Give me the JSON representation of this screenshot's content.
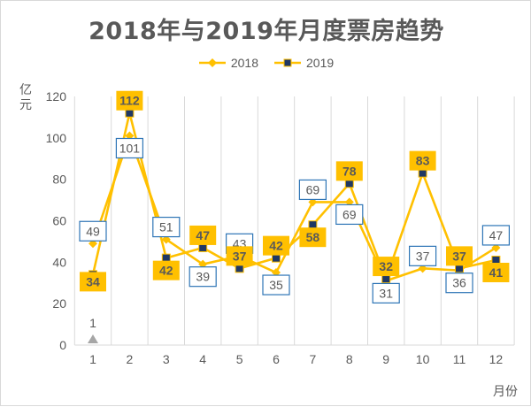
{
  "chart_data": {
    "type": "line",
    "title": "2018年与2019年月度票房趋势",
    "ylabel": "亿元",
    "xlabel": "月份",
    "categories": [
      "1",
      "2",
      "3",
      "4",
      "5",
      "6",
      "7",
      "8",
      "9",
      "10",
      "11",
      "12"
    ],
    "ylim": [
      0,
      120
    ],
    "yticks": [
      0,
      20,
      40,
      60,
      80,
      100,
      120
    ],
    "grid": "vertical",
    "legend_position": "top",
    "series": [
      {
        "name": "2018",
        "values": [
          49,
          101,
          51,
          39,
          43,
          35,
          69,
          69,
          31,
          37,
          36,
          47
        ],
        "color": "#ffc000",
        "marker": "diamond",
        "label_style": "boxed"
      },
      {
        "name": "2019",
        "values": [
          34,
          112,
          42,
          47,
          37,
          42,
          58,
          78,
          32,
          83,
          37,
          41
        ],
        "color": "#ffc000",
        "marker": "square",
        "marker_fill": "#203864",
        "label_style": "filled"
      }
    ],
    "annotations": [
      {
        "text": "1",
        "marker": "triangle",
        "x": "1",
        "y": 0,
        "color": "#a6a6a6"
      }
    ]
  },
  "colors": {
    "line": "#ffc000",
    "label_box_border": "#2e75b6",
    "label_fill": "#ffc000",
    "marker_2019": "#203864",
    "text": "#595959",
    "grid": "#d9d9d9",
    "triangle": "#a6a6a6"
  }
}
